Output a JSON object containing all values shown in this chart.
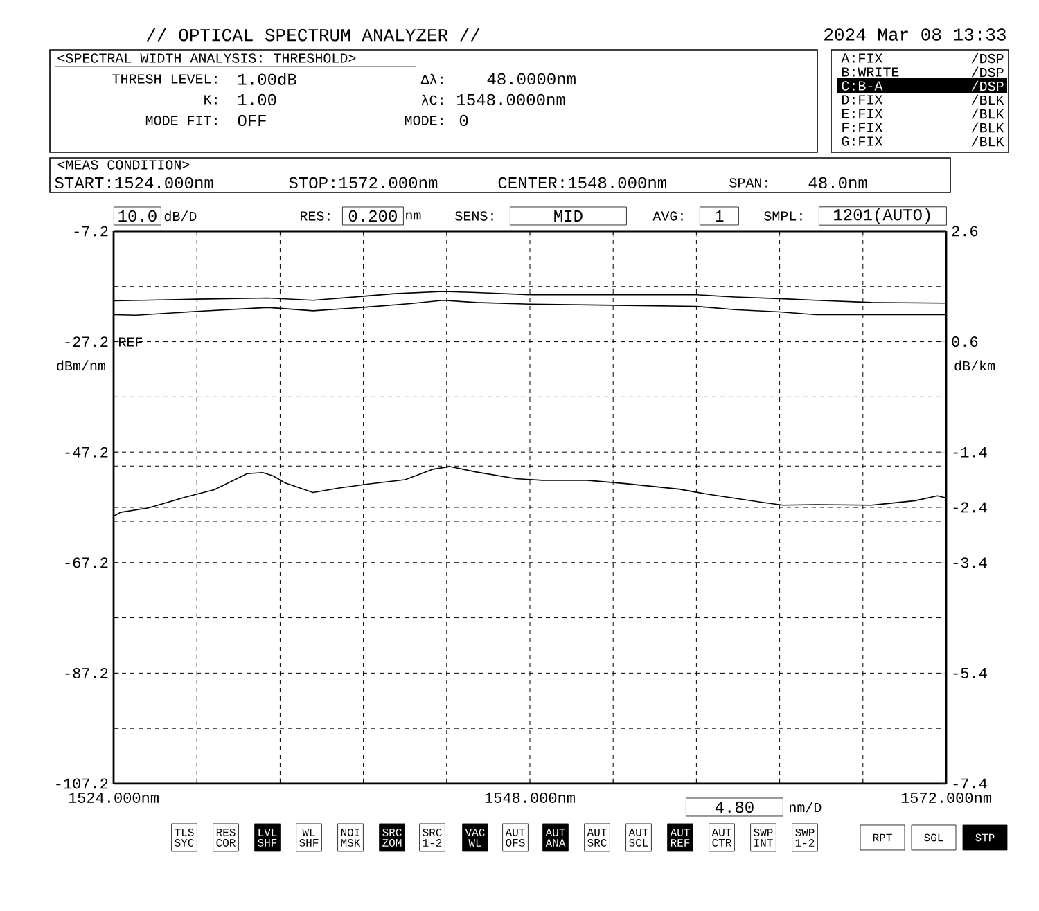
{
  "chart_data": {
    "type": "line",
    "title": "// OPTICAL SPECTRUM ANALYZER //",
    "subtitle": "2024 Mar 08 13:33",
    "ylabel": "dBm/nm",
    "y2label": "dB/km",
    "annotations": [
      "<SPECTRAL WIDTH ANALYSIS: THRESHOLD>",
      "THRESH LEVEL:",
      "1.00dB",
      "Δλ:",
      "48.0000nm",
      "K:",
      "1.00",
      "λC:",
      "1548.0000nm",
      "MODE FIT:",
      "OFF",
      "MODE:",
      "0",
      "A:FIX",
      "/DSP",
      "B:WRITE",
      "/DSP",
      "C:B-A",
      "/DSP",
      "D:FIX",
      "/BLK",
      "E:FIX",
      "/BLK",
      "F:FIX",
      "/BLK",
      "G:FIX",
      "/BLK",
      "<MEAS CONDITION>",
      "START:1524.000nm",
      "STOP:1572.000nm",
      "CENTER:1548.000nm",
      "SPAN:",
      "48.0nm",
      "10.0",
      "dB/D",
      "RES:",
      "0.200",
      "nm",
      "SENS:",
      "MID",
      "AVG:",
      "1",
      "SMPL:",
      "1201(AUTO)",
      "REF",
      "4.80",
      "nm/D",
      "TLS SYC",
      "RES COR",
      "LVL SHF",
      "WL SHF",
      "NOI MSK",
      "SRC ZOM",
      "SRC 1-2",
      "VAC WL",
      "AUT OFS",
      "AUT ANA",
      "AUT SRC",
      "AUT SCL",
      "AUT REF",
      "AUT CTR",
      "SWP INT",
      "SWP 1-2",
      "RPT",
      "SGL",
      "STP"
    ],
    "series": [
      {
        "color": "#000000",
        "x": [
          1524,
          1528.8,
          1532.9,
          1535.5,
          1538.3,
          1540.2,
          1543.0,
          1544.9,
          1548.1,
          1552.8,
          1557.6,
          1559.8,
          1562.4,
          1564.5,
          1567.7,
          1572
        ],
        "values": [
          -19.8,
          -19.5,
          -19.3,
          -19.7,
          -19.0,
          -18.5,
          -18.1,
          -18.3,
          -18.7,
          -18.7,
          -18.7,
          -19.1,
          -19.4,
          -19.7,
          -20.1,
          -20.2
        ]
      },
      {
        "color": "#000000",
        "x": [
          1524,
          1525.3,
          1528.8,
          1532.9,
          1535.5,
          1538.3,
          1541.1,
          1543.0,
          1544.9,
          1548.1,
          1552.8,
          1557.6,
          1559.8,
          1562.4,
          1564.5,
          1567.7,
          1572
        ],
        "values": [
          -22.3,
          -22.4,
          -21.7,
          -21.0,
          -21.6,
          -21.0,
          -20.3,
          -19.7,
          -20.1,
          -20.4,
          -20.6,
          -20.8,
          -21.4,
          -21.8,
          -22.3,
          -22.3,
          -22.3
        ]
      },
      {
        "color": "#000000",
        "axis": "y2",
        "x": [
          1524,
          1524.4,
          1526.0,
          1528.2,
          1529.8,
          1531.7,
          1532.6,
          1533.2,
          1533.9,
          1535.5,
          1537.0,
          1538.6,
          1540.8,
          1542.4,
          1543.4,
          1544.9,
          1547.2,
          1548.7,
          1551.3,
          1553.5,
          1556.6,
          1558.2,
          1561.4,
          1562.6,
          1564.5,
          1567.7,
          1570.2,
          1571.5,
          1572
        ],
        "values": [
          -2.56,
          -2.49,
          -2.41,
          -2.21,
          -2.08,
          -1.79,
          -1.77,
          -1.83,
          -1.96,
          -2.13,
          -2.05,
          -1.98,
          -1.9,
          -1.71,
          -1.66,
          -1.76,
          -1.88,
          -1.91,
          -1.91,
          -1.97,
          -2.07,
          -2.16,
          -2.31,
          -2.36,
          -2.35,
          -2.36,
          -2.28,
          -2.19,
          -2.23
        ]
      }
    ],
    "xlim": [
      1524,
      1572
    ],
    "xticks": [
      {
        "value": 1524,
        "label": "1524.000nm"
      },
      {
        "value": 1528.8,
        "label": null
      },
      {
        "value": 1533.6,
        "label": null
      },
      {
        "value": 1538.4,
        "label": null
      },
      {
        "value": 1543.2,
        "label": null
      },
      {
        "value": 1548,
        "label": "1548.000nm"
      },
      {
        "value": 1552.8,
        "label": null
      },
      {
        "value": 1557.6,
        "label": null
      },
      {
        "value": 1562.4,
        "label": null
      },
      {
        "value": 1567.2,
        "label": null
      },
      {
        "value": 1572,
        "label": "1572.000nm"
      }
    ],
    "ylim": [
      -107.2,
      -7.2
    ],
    "yticks": [
      -7.2,
      {
        "value": -17.2,
        "label": null
      },
      -27.2,
      {
        "value": -37.2,
        "label": null
      },
      -47.2,
      {
        "value": -57.2,
        "label": null
      },
      -67.2,
      {
        "value": -77.2,
        "label": null
      },
      -87.2,
      {
        "value": -97.2,
        "label": null
      },
      -107.2
    ],
    "y2lim": [
      -7.4,
      2.6
    ],
    "y2ticks": [
      2.6,
      0.6,
      -1.4,
      -2.4,
      -3.4,
      -5.4,
      -7.4
    ],
    "ref_lines": [
      {
        "axis": "y2",
        "value": -1.65,
        "line_style": "dashed"
      },
      {
        "axis": "y2",
        "value": -2.65,
        "line_style": "dashed"
      }
    ],
    "grid": true
  }
}
